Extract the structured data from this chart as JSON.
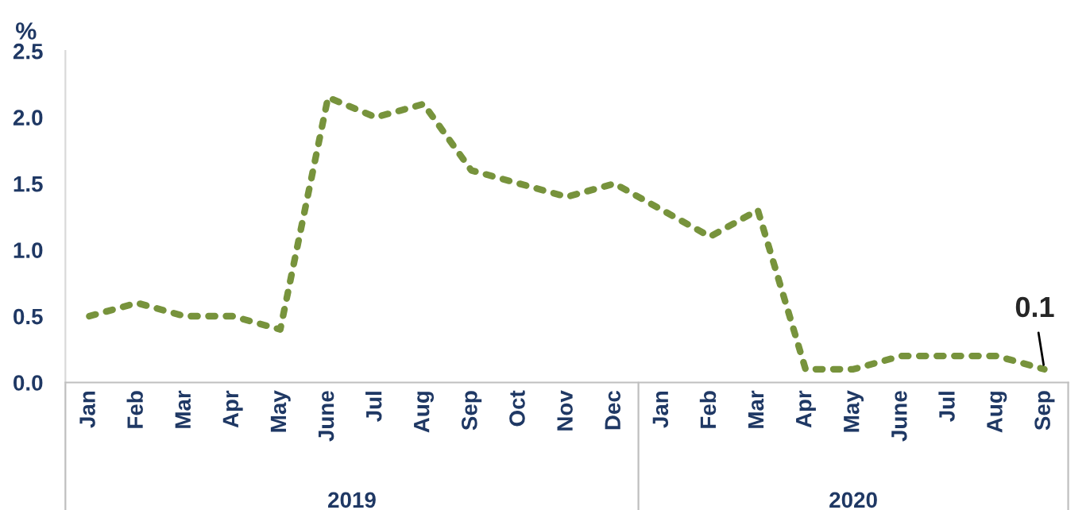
{
  "chart_data": {
    "type": "line",
    "ylabel": "%",
    "categories": [
      "Jan",
      "Feb",
      "Mar",
      "Apr",
      "May",
      "June",
      "Jul",
      "Aug",
      "Sep",
      "Oct",
      "Nov",
      "Dec",
      "Jan",
      "Feb",
      "Mar",
      "Apr",
      "May",
      "June",
      "Jul",
      "Aug",
      "Sep"
    ],
    "series": [
      {
        "color": "#77933c",
        "values": [
          0.5,
          0.6,
          0.5,
          0.5,
          0.4,
          2.15,
          2.0,
          2.1,
          1.6,
          1.5,
          1.4,
          1.5,
          1.3,
          1.1,
          1.3,
          0.1,
          0.1,
          0.2,
          0.2,
          0.2,
          0.1
        ],
        "value_labels": [
          null,
          null,
          null,
          null,
          null,
          null,
          null,
          null,
          null,
          null,
          null,
          null,
          null,
          null,
          null,
          null,
          null,
          null,
          null,
          null,
          "0.1"
        ]
      }
    ],
    "annotations": [
      "2019",
      "2020"
    ],
    "ylim": [
      0,
      2.5
    ],
    "yticks": [
      "0.0",
      "0.5",
      "1.0",
      "1.5",
      "2.0",
      "2.5"
    ],
    "line_style": "dotted",
    "marker": "none",
    "grid": false,
    "legend": false
  }
}
